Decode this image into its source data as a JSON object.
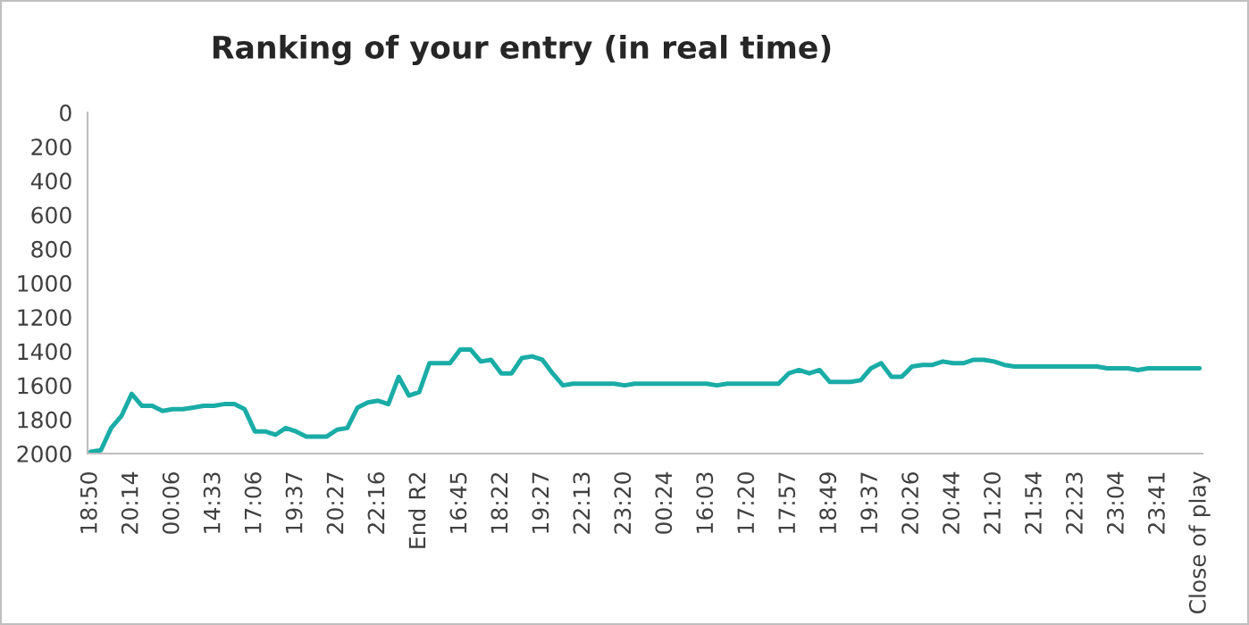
{
  "chart_data": {
    "type": "line",
    "title": "Ranking of your entry (in real time)",
    "categories": [
      "18:50",
      null,
      null,
      null,
      "20:14",
      null,
      null,
      null,
      "00:06",
      null,
      null,
      null,
      "14:33",
      null,
      null,
      null,
      "17:06",
      null,
      null,
      null,
      "19:37",
      null,
      null,
      null,
      "20:27",
      null,
      null,
      null,
      "22:16",
      null,
      null,
      null,
      "End R2",
      null,
      null,
      null,
      "16:45",
      null,
      null,
      null,
      "18:22",
      null,
      null,
      null,
      "19:27",
      null,
      null,
      null,
      "22:13",
      null,
      null,
      null,
      "23:20",
      null,
      null,
      null,
      "00:24",
      null,
      null,
      null,
      "16:03",
      null,
      null,
      null,
      "17:20",
      null,
      null,
      null,
      "17:57",
      null,
      null,
      null,
      "18:49",
      null,
      null,
      null,
      "19:37",
      null,
      null,
      null,
      "20:26",
      null,
      null,
      null,
      "20:44",
      null,
      null,
      null,
      "21:20",
      null,
      null,
      null,
      "21:54",
      null,
      null,
      null,
      "22:23",
      null,
      null,
      null,
      "23:04",
      null,
      null,
      null,
      "23:41",
      null,
      null,
      null,
      "Close of play"
    ],
    "series": [
      {
        "color": "#1aaca6",
        "values": [
          1990,
          1980,
          1850,
          1780,
          1650,
          1720,
          1720,
          1750,
          1740,
          1740,
          1730,
          1720,
          1720,
          1710,
          1710,
          1740,
          1870,
          1870,
          1890,
          1850,
          1870,
          1900,
          1900,
          1900,
          1860,
          1850,
          1730,
          1700,
          1690,
          1710,
          1550,
          1660,
          1640,
          1470,
          1470,
          1470,
          1390,
          1390,
          1460,
          1450,
          1530,
          1530,
          1440,
          1430,
          1450,
          1530,
          1600,
          1590,
          1590,
          1590,
          1590,
          1590,
          1600,
          1590,
          1590,
          1590,
          1590,
          1590,
          1590,
          1590,
          1590,
          1600,
          1590,
          1590,
          1590,
          1590,
          1590,
          1590,
          1530,
          1510,
          1530,
          1510,
          1580,
          1580,
          1580,
          1570,
          1500,
          1470,
          1550,
          1550,
          1490,
          1480,
          1480,
          1460,
          1470,
          1470,
          1450,
          1450,
          1460,
          1480,
          1490,
          1490,
          1490,
          1490,
          1490,
          1490,
          1490,
          1490,
          1490,
          1500,
          1500,
          1500,
          1510,
          1500,
          1500,
          1500,
          1500,
          1500,
          1500
        ]
      }
    ],
    "ylim": [
      2000,
      0
    ],
    "yticks": [
      0,
      200,
      400,
      600,
      800,
      1000,
      1200,
      1400,
      1600,
      1800,
      2000
    ],
    "grid": false
  }
}
